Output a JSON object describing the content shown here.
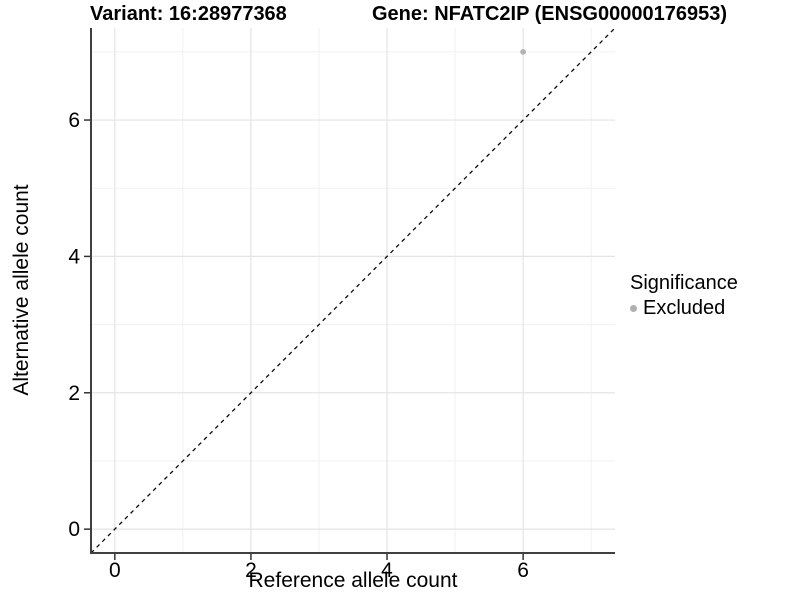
{
  "header": {
    "variant_title": "Variant: 16:28977368",
    "gene_title": "Gene: NFATC2IP (ENSG00000176953)"
  },
  "chart_data": {
    "type": "scatter",
    "title_left": "Variant: 16:28977368",
    "title_right": "Gene: NFATC2IP (ENSG00000176953)",
    "xlabel": "Reference allele count",
    "ylabel": "Alternative allele count",
    "xlim": [
      -0.35,
      7.35
    ],
    "ylim": [
      -0.35,
      7.35
    ],
    "xticks": [
      0,
      2,
      4,
      6
    ],
    "yticks": [
      0,
      2,
      4,
      6
    ],
    "minor_xticks": [
      1,
      3,
      5,
      7
    ],
    "minor_yticks": [
      1,
      3,
      5,
      7
    ],
    "grid": "on",
    "reference_line": {
      "type": "identity",
      "equation": "y = x",
      "style": "dashed",
      "color": "#000000"
    },
    "points": [
      {
        "x": 6,
        "y": 7,
        "series": "Excluded"
      }
    ],
    "legend": {
      "title": "Significance",
      "position": "right",
      "items": [
        {
          "label": "Excluded",
          "marker": "circle",
          "color": "#b0b0b0"
        }
      ]
    }
  },
  "colors": {
    "background": "#ffffff",
    "grid_major": "#e4e4e4",
    "grid_minor": "#f1f1f1",
    "axis_line": "#404040",
    "tick_mark": "#333333",
    "point": "#b3b3b3",
    "reference_line": "#0a0a0a",
    "text": "#000000"
  }
}
